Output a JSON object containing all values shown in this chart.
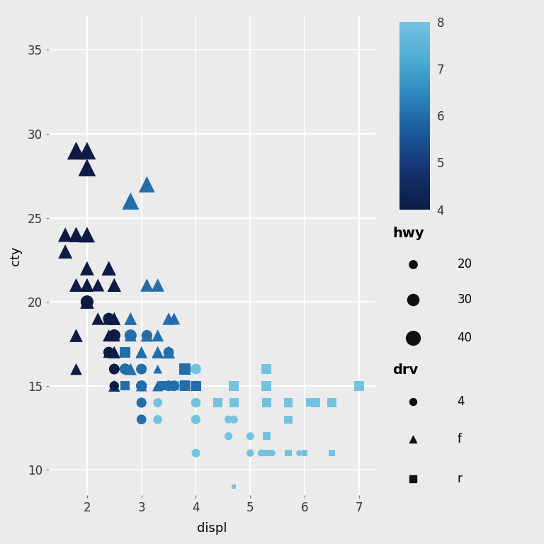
{
  "mpg_data": [
    [
      1.8,
      18,
      4,
      "f",
      29
    ],
    [
      1.8,
      21,
      4,
      "f",
      29
    ],
    [
      2.0,
      20,
      4,
      "f",
      31
    ],
    [
      2.0,
      21,
      4,
      "f",
      30
    ],
    [
      2.8,
      16,
      6,
      "f",
      26
    ],
    [
      2.8,
      18,
      6,
      "f",
      26
    ],
    [
      3.1,
      18,
      6,
      "f",
      27
    ],
    [
      1.8,
      18,
      4,
      "f",
      26
    ],
    [
      1.8,
      16,
      4,
      "f",
      25
    ],
    [
      2.0,
      20,
      4,
      "f",
      28
    ],
    [
      2.4,
      19,
      4,
      "f",
      27
    ],
    [
      2.4,
      18,
      4,
      "f",
      26
    ],
    [
      2.5,
      17,
      5,
      "f",
      25
    ],
    [
      2.5,
      15,
      5,
      "f",
      25
    ],
    [
      3.3,
      15,
      6,
      "f",
      23
    ],
    [
      3.3,
      15,
      6,
      "f",
      20
    ],
    [
      3.3,
      17,
      6,
      "f",
      20
    ],
    [
      3.3,
      16,
      6,
      "f",
      19
    ],
    [
      3.3,
      15,
      6,
      "f",
      20
    ],
    [
      1.8,
      29,
      4,
      "f",
      44
    ],
    [
      1.8,
      29,
      4,
      "f",
      44
    ],
    [
      2.0,
      28,
      4,
      "f",
      44
    ],
    [
      2.0,
      29,
      4,
      "f",
      44
    ],
    [
      2.8,
      26,
      6,
      "f",
      41
    ],
    [
      2.8,
      26,
      6,
      "f",
      40
    ],
    [
      3.1,
      27,
      6,
      "f",
      39
    ],
    [
      1.8,
      24,
      4,
      "f",
      35
    ],
    [
      1.8,
      24,
      4,
      "f",
      35
    ],
    [
      2.0,
      24,
      4,
      "f",
      37
    ],
    [
      2.4,
      22,
      4,
      "f",
      32
    ],
    [
      2.4,
      22,
      4,
      "f",
      32
    ],
    [
      2.5,
      21,
      4,
      "f",
      30
    ],
    [
      2.5,
      21,
      4,
      "f",
      30
    ],
    [
      3.3,
      21,
      6,
      "f",
      29
    ],
    [
      1.8,
      21,
      4,
      "f",
      29
    ],
    [
      1.8,
      21,
      4,
      "f",
      28
    ],
    [
      2.0,
      21,
      4,
      "f",
      29
    ],
    [
      2.0,
      20,
      4,
      "f",
      27
    ],
    [
      2.8,
      19,
      6,
      "f",
      27
    ],
    [
      2.8,
      19,
      6,
      "f",
      27
    ],
    [
      3.6,
      19,
      6,
      "f",
      26
    ],
    [
      2.5,
      19,
      4,
      "f",
      25
    ],
    [
      2.5,
      19,
      4,
      "f",
      28
    ],
    [
      3.3,
      18,
      6,
      "f",
      26
    ],
    [
      3.3,
      17,
      6,
      "f",
      26
    ],
    [
      3.3,
      17,
      6,
      "f",
      25
    ],
    [
      3.0,
      17,
      6,
      "f",
      24
    ],
    [
      3.0,
      17,
      6,
      "f",
      24
    ],
    [
      3.0,
      15,
      6,
      "f",
      23
    ],
    [
      3.0,
      15,
      6,
      "f",
      22
    ],
    [
      2.4,
      17,
      4,
      "f",
      23
    ],
    [
      2.4,
      17,
      4,
      "f",
      24
    ],
    [
      3.1,
      21,
      6,
      "f",
      29
    ],
    [
      3.5,
      19,
      6,
      "f",
      27
    ],
    [
      3.5,
      17,
      6,
      "f",
      27
    ],
    [
      3.5,
      17,
      6,
      "f",
      27
    ],
    [
      1.6,
      23,
      4,
      "f",
      32
    ],
    [
      1.6,
      24,
      4,
      "f",
      33
    ],
    [
      2.0,
      22,
      4,
      "f",
      32
    ],
    [
      2.5,
      18,
      4,
      "f",
      26
    ],
    [
      2.5,
      17,
      4,
      "f",
      26
    ],
    [
      2.2,
      21,
      4,
      "f",
      28
    ],
    [
      2.2,
      19,
      4,
      "f",
      27
    ],
    [
      3.0,
      17,
      6,
      "f",
      24
    ],
    [
      3.0,
      17,
      6,
      "f",
      24
    ],
    [
      4.0,
      14,
      8,
      "4",
      18
    ],
    [
      4.0,
      14,
      8,
      "4",
      18
    ],
    [
      4.0,
      14,
      8,
      "4",
      18
    ],
    [
      4.0,
      14,
      8,
      "4",
      19
    ],
    [
      4.0,
      11,
      8,
      "4",
      18
    ],
    [
      4.7,
      14,
      8,
      "4",
      19
    ],
    [
      4.7,
      14,
      8,
      "4",
      19
    ],
    [
      4.7,
      13,
      8,
      "4",
      17
    ],
    [
      5.2,
      11,
      8,
      "4",
      15
    ],
    [
      5.2,
      11,
      8,
      "4",
      15
    ],
    [
      5.7,
      11,
      8,
      "4",
      15
    ],
    [
      5.9,
      11,
      8,
      "4",
      14
    ],
    [
      4.0,
      14,
      8,
      "4",
      19
    ],
    [
      4.0,
      13,
      8,
      "4",
      19
    ],
    [
      4.6,
      13,
      8,
      "4",
      17
    ],
    [
      5.0,
      12,
      8,
      "4",
      17
    ],
    [
      5.4,
      11,
      8,
      "4",
      14
    ],
    [
      5.4,
      11,
      8,
      "4",
      15
    ],
    [
      2.5,
      16,
      4,
      "4",
      22
    ],
    [
      2.5,
      16,
      4,
      "4",
      22
    ],
    [
      2.5,
      18,
      4,
      "4",
      24
    ],
    [
      2.5,
      18,
      4,
      "4",
      24
    ],
    [
      2.5,
      18,
      4,
      "4",
      26
    ],
    [
      2.5,
      18,
      4,
      "4",
      26
    ],
    [
      2.7,
      16,
      6,
      "4",
      23
    ],
    [
      2.7,
      16,
      6,
      "4",
      23
    ],
    [
      3.0,
      15,
      6,
      "4",
      22
    ],
    [
      3.7,
      15,
      8,
      "4",
      21
    ],
    [
      4.0,
      16,
      8,
      "4",
      22
    ],
    [
      4.0,
      15,
      8,
      "4",
      22
    ],
    [
      3.0,
      15,
      6,
      "4",
      21
    ],
    [
      3.0,
      15,
      6,
      "4",
      21
    ],
    [
      3.3,
      14,
      8,
      "4",
      19
    ],
    [
      3.0,
      15,
      6,
      "4",
      23
    ],
    [
      3.0,
      15,
      6,
      "4",
      22
    ],
    [
      3.0,
      13,
      6,
      "4",
      20
    ],
    [
      3.0,
      13,
      6,
      "4",
      20
    ],
    [
      4.0,
      14,
      8,
      "4",
      20
    ],
    [
      4.0,
      14,
      8,
      "4",
      19
    ],
    [
      4.0,
      13,
      8,
      "4",
      19
    ],
    [
      4.0,
      13,
      8,
      "4",
      19
    ],
    [
      4.6,
      12,
      8,
      "4",
      16
    ],
    [
      4.6,
      12,
      8,
      "4",
      17
    ],
    [
      5.0,
      11,
      8,
      "4",
      16
    ],
    [
      5.0,
      11,
      8,
      "4",
      15
    ],
    [
      3.0,
      16,
      6,
      "4",
      22
    ],
    [
      3.0,
      16,
      6,
      "4",
      22
    ],
    [
      3.6,
      15,
      6,
      "4",
      22
    ],
    [
      3.6,
      15,
      6,
      "4",
      22
    ],
    [
      3.0,
      14,
      6,
      "4",
      21
    ],
    [
      3.0,
      14,
      6,
      "4",
      20
    ],
    [
      3.0,
      14,
      6,
      "4",
      20
    ],
    [
      3.3,
      13,
      8,
      "4",
      19
    ],
    [
      2.4,
      19,
      4,
      "4",
      25
    ],
    [
      3.1,
      18,
      6,
      "4",
      23
    ],
    [
      3.5,
      17,
      6,
      "4",
      22
    ],
    [
      2.0,
      20,
      4,
      "4",
      28
    ],
    [
      2.5,
      15,
      4,
      "4",
      20
    ],
    [
      2.4,
      17,
      4,
      "4",
      22
    ],
    [
      2.4,
      17,
      4,
      "4",
      23
    ],
    [
      3.5,
      15,
      6,
      "4",
      22
    ],
    [
      3.5,
      15,
      6,
      "4",
      22
    ],
    [
      2.0,
      20,
      4,
      "4",
      27
    ],
    [
      2.0,
      20,
      4,
      "4",
      26
    ],
    [
      2.8,
      18,
      6,
      "4",
      26
    ],
    [
      4.4,
      14,
      8,
      "r",
      19
    ],
    [
      5.3,
      12,
      8,
      "r",
      17
    ],
    [
      5.3,
      11,
      8,
      "r",
      15
    ],
    [
      5.3,
      14,
      8,
      "r",
      19
    ],
    [
      5.7,
      11,
      8,
      "r",
      15
    ],
    [
      6.0,
      11,
      8,
      "r",
      14
    ],
    [
      5.7,
      14,
      8,
      "r",
      19
    ],
    [
      5.7,
      14,
      8,
      "r",
      18
    ],
    [
      6.2,
      14,
      8,
      "r",
      19
    ],
    [
      6.2,
      14,
      8,
      "r",
      17
    ],
    [
      7.0,
      15,
      8,
      "r",
      21
    ],
    [
      5.3,
      15,
      8,
      "r",
      19
    ],
    [
      5.3,
      14,
      8,
      "r",
      18
    ],
    [
      5.3,
      14,
      8,
      "r",
      19
    ],
    [
      5.3,
      14,
      8,
      "r",
      19
    ],
    [
      5.7,
      14,
      8,
      "r",
      19
    ],
    [
      6.5,
      11,
      8,
      "r",
      14
    ],
    [
      2.7,
      17,
      6,
      "r",
      23
    ],
    [
      2.7,
      15,
      6,
      "r",
      20
    ],
    [
      3.4,
      15,
      6,
      "r",
      20
    ],
    [
      3.4,
      15,
      6,
      "r",
      20
    ],
    [
      4.0,
      15,
      6,
      "r",
      21
    ],
    [
      4.7,
      15,
      8,
      "r",
      21
    ],
    [
      4.7,
      14,
      8,
      "r",
      19
    ],
    [
      5.7,
      13,
      8,
      "r",
      17
    ],
    [
      5.7,
      13,
      8,
      "r",
      17
    ],
    [
      6.1,
      14,
      8,
      "r",
      18
    ],
    [
      5.7,
      14,
      8,
      "r",
      18
    ],
    [
      5.7,
      14,
      8,
      "r",
      18
    ],
    [
      4.7,
      9,
      8,
      "r",
      12
    ],
    [
      3.8,
      16,
      6,
      "r",
      23
    ],
    [
      3.8,
      15,
      6,
      "r",
      22
    ],
    [
      5.3,
      16,
      8,
      "r",
      21
    ],
    [
      5.3,
      15,
      8,
      "r",
      21
    ],
    [
      5.3,
      15,
      8,
      "r",
      20
    ],
    [
      5.3,
      16,
      8,
      "r",
      21
    ],
    [
      5.7,
      14,
      8,
      "r",
      19
    ],
    [
      6.5,
      14,
      8,
      "r",
      19
    ]
  ],
  "cyl_min": 4,
  "cyl_max": 8,
  "colorbar_ticks": [
    4,
    5,
    6,
    7,
    8
  ],
  "hwy_min": 12,
  "hwy_max": 44,
  "background_color": "#ebebeb",
  "grid_color": "#ffffff",
  "xlabel": "displ",
  "ylabel": "cty",
  "xlim": [
    1.3,
    7.3
  ],
  "ylim": [
    8.5,
    37
  ],
  "xticks": [
    2,
    3,
    4,
    5,
    6,
    7
  ],
  "yticks": [
    10,
    15,
    20,
    25,
    30,
    35
  ],
  "hwy_legend_values": [
    20,
    30,
    40
  ],
  "drv_labels": [
    "4",
    "f",
    "r"
  ],
  "font_size": 12,
  "label_fontsize": 13,
  "fig_bg": "#ebebeb",
  "title_fontsize": 13
}
